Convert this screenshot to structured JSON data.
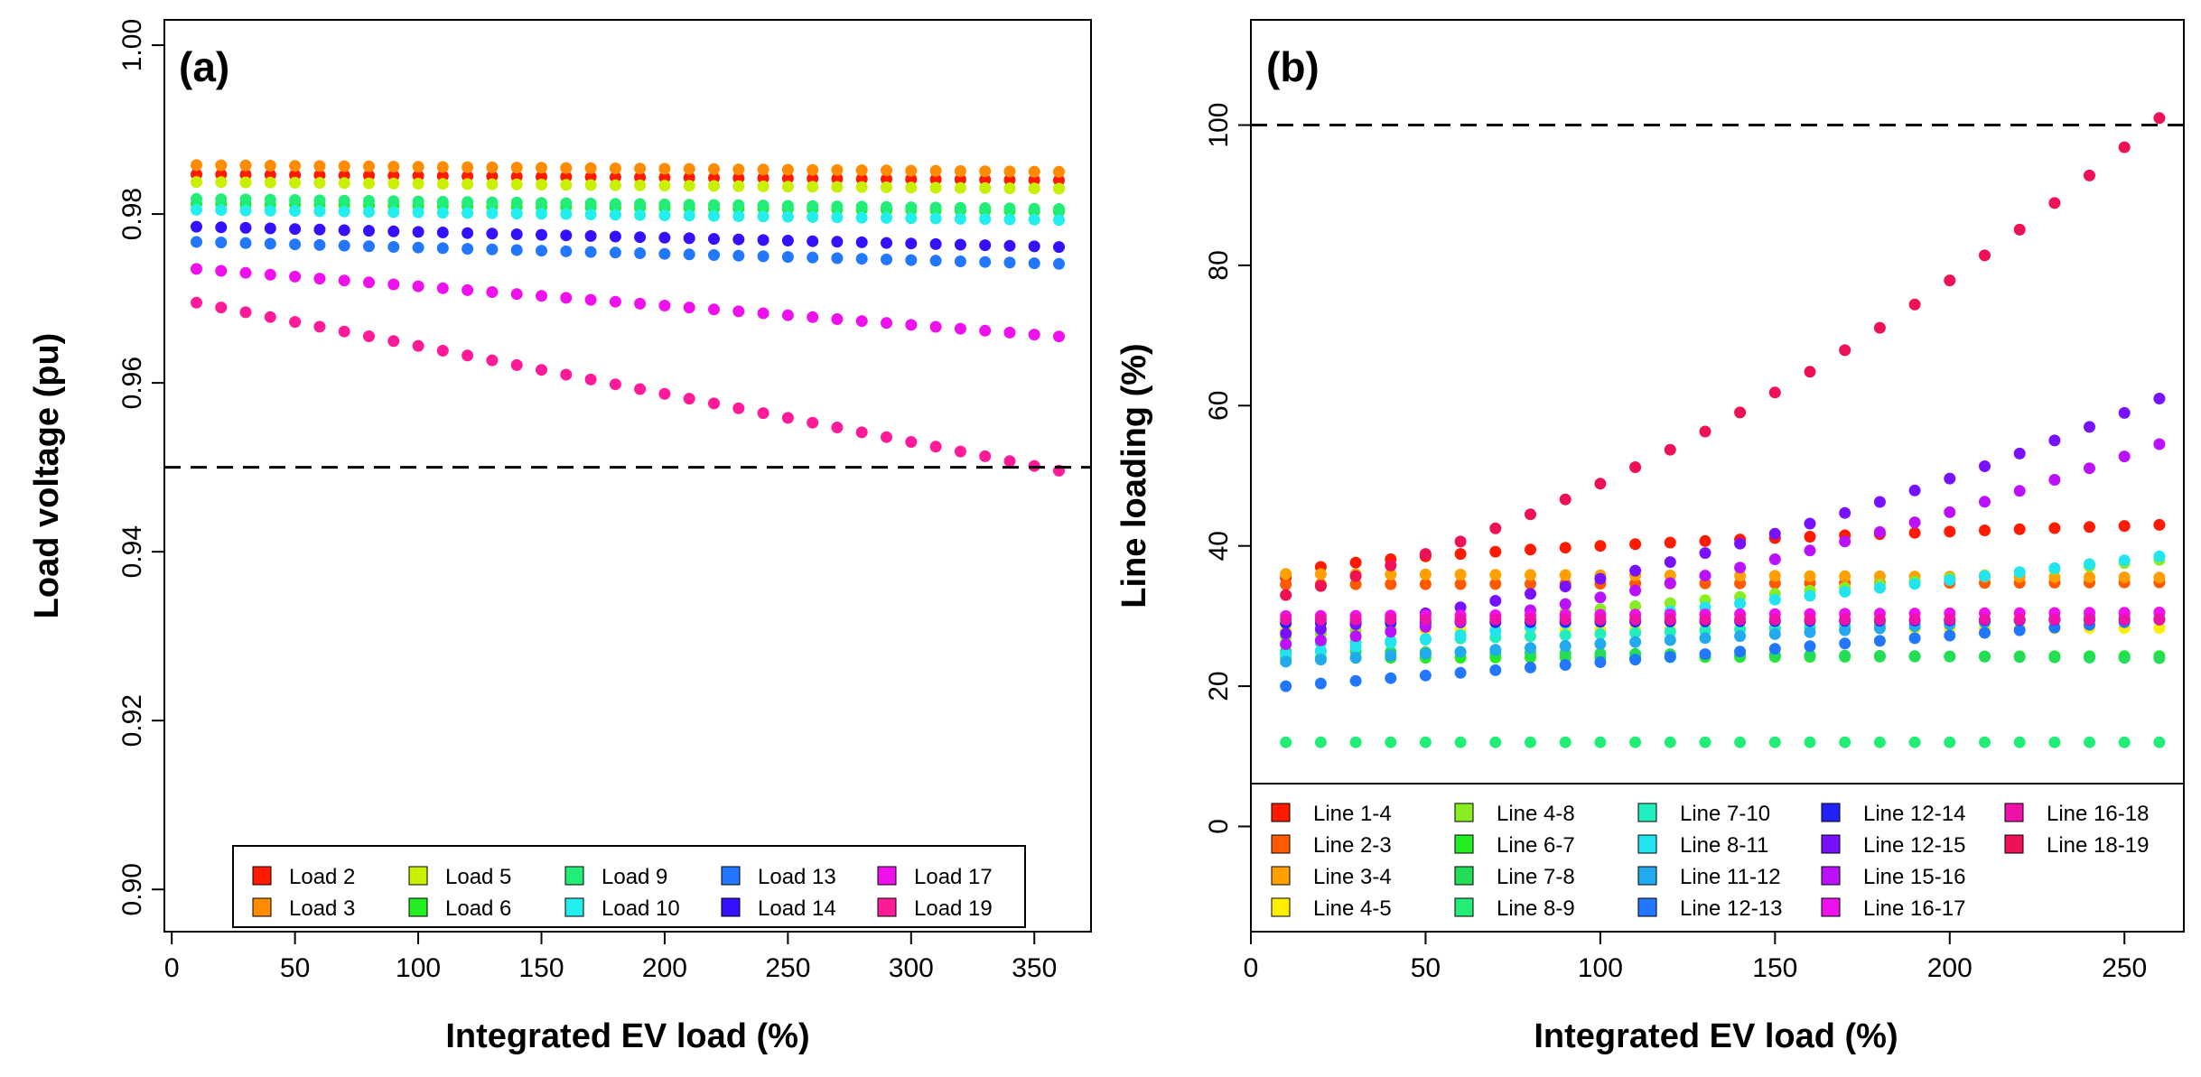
{
  "chart_data": [
    {
      "type": "scatter",
      "panel_label": "(a)",
      "xlabel": "Integrated EV load (%)",
      "ylabel": "Load voltage (pu)",
      "xlim": [
        -3,
        373
      ],
      "ylim": [
        0.895,
        1.003
      ],
      "xticks": [
        0,
        50,
        100,
        150,
        200,
        250,
        300,
        350
      ],
      "yticks": [
        0.9,
        0.92,
        0.94,
        0.96,
        0.98,
        1.0
      ],
      "ytick_labels": [
        "0.90",
        "0.92",
        "0.94",
        "0.96",
        "0.98",
        "1.00"
      ],
      "reference_line": 0.95,
      "legend_position": "bottom-right",
      "legend_columns": 5,
      "x": [
        10,
        20,
        30,
        40,
        50,
        60,
        70,
        80,
        90,
        100,
        110,
        120,
        130,
        140,
        150,
        160,
        170,
        180,
        190,
        200,
        210,
        220,
        230,
        240,
        250,
        260,
        270,
        280,
        290,
        300,
        310,
        320,
        330,
        340,
        350,
        360
      ],
      "series": [
        {
          "name": "Load 2",
          "color": "#ff1a00",
          "start": 0.9847,
          "end": 0.984
        },
        {
          "name": "Load 3",
          "color": "#ff8c00",
          "start": 0.9858,
          "end": 0.985
        },
        {
          "name": "Load 5",
          "color": "#c8f000",
          "start": 0.9838,
          "end": 0.983
        },
        {
          "name": "Load 6",
          "color": "#22ee22",
          "start": 0.9812,
          "end": 0.9803
        },
        {
          "name": "Load 9",
          "color": "#22ee77",
          "start": 0.9818,
          "end": 0.9806
        },
        {
          "name": "Load 10",
          "color": "#22eeee",
          "start": 0.9805,
          "end": 0.9793
        },
        {
          "name": "Load 13",
          "color": "#2277ff",
          "start": 0.9767,
          "end": 0.9741
        },
        {
          "name": "Load 14",
          "color": "#3311ff",
          "start": 0.9785,
          "end": 0.9761
        },
        {
          "name": "Load 17",
          "color": "#ee11ee",
          "start": 0.9735,
          "end": 0.9655
        },
        {
          "name": "Load 19",
          "color": "#ff1a99",
          "start": 0.9695,
          "end": 0.9496
        }
      ]
    },
    {
      "type": "scatter",
      "panel_label": "(b)",
      "xlabel": "Integrated EV load (%)",
      "ylabel": "Line loading (%)",
      "xlim": [
        0,
        267
      ],
      "ylim": [
        -15,
        115
      ],
      "xticks": [
        0,
        50,
        100,
        150,
        200,
        250
      ],
      "yticks": [
        0,
        20,
        40,
        60,
        80,
        100
      ],
      "ytick_labels": [
        "0",
        "20",
        "40",
        "60",
        "80",
        "100"
      ],
      "reference_line": 100,
      "legend_position": "bottom",
      "legend_columns": 5,
      "x": [
        10,
        20,
        30,
        40,
        50,
        60,
        70,
        80,
        90,
        100,
        110,
        120,
        130,
        140,
        150,
        160,
        170,
        180,
        190,
        200,
        210,
        220,
        230,
        240,
        250,
        260
      ],
      "series": [
        {
          "name": "Line 1-4",
          "color": "#ff1a00",
          "start": 35.5,
          "end": 43.0,
          "shape": "sqrt"
        },
        {
          "name": "Line 2-3",
          "color": "#ff5a00",
          "start": 34.5,
          "end": 34.8,
          "shape": "linear"
        },
        {
          "name": "Line 3-4",
          "color": "#ffa000",
          "start": 36.0,
          "end": 35.5,
          "shape": "linear"
        },
        {
          "name": "Line 4-5",
          "color": "#ffee00",
          "start": 28.0,
          "end": 28.3,
          "shape": "linear"
        },
        {
          "name": "Line 4-8",
          "color": "#88ee22",
          "start": 27.0,
          "end": 38.0,
          "shape": "linear"
        },
        {
          "name": "Line 6-7",
          "color": "#22ee22",
          "start": 24.0,
          "end": 24.3,
          "shape": "linear"
        },
        {
          "name": "Line 7-8",
          "color": "#22dd55",
          "start": 25.0,
          "end": 24.0,
          "shape": "linear"
        },
        {
          "name": "Line 8-9",
          "color": "#22ee77",
          "start": 12.0,
          "end": 12.0,
          "shape": "linear"
        },
        {
          "name": "Line 7-10",
          "color": "#22eebb",
          "start": 26.0,
          "end": 30.0,
          "shape": "linear"
        },
        {
          "name": "Line 8-11",
          "color": "#22e4ee",
          "start": 24.5,
          "end": 38.5,
          "shape": "linear"
        },
        {
          "name": "Line 11-12",
          "color": "#22aaee",
          "start": 23.5,
          "end": 30.5,
          "shape": "linear"
        },
        {
          "name": "Line 12-13",
          "color": "#2277ff",
          "start": 20.0,
          "end": 29.5,
          "shape": "linear"
        },
        {
          "name": "Line 12-14",
          "color": "#2222ff",
          "start": 29.0,
          "end": 29.5,
          "shape": "linear"
        },
        {
          "name": "Line 12-15",
          "color": "#7711ff",
          "start": 27.5,
          "end": 61.0,
          "shape": "quad"
        },
        {
          "name": "Line 15-16",
          "color": "#bb11ff",
          "start": 26.0,
          "end": 54.5,
          "shape": "quad"
        },
        {
          "name": "Line 16-17",
          "color": "#ee11ee",
          "start": 30.0,
          "end": 30.5,
          "shape": "linear"
        },
        {
          "name": "Line 16-18",
          "color": "#ee11aa",
          "start": 29.5,
          "end": 29.5,
          "shape": "linear"
        },
        {
          "name": "Line 18-19",
          "color": "#ee1155",
          "start": 33.0,
          "end": 101.0,
          "shape": "quad"
        }
      ]
    }
  ]
}
